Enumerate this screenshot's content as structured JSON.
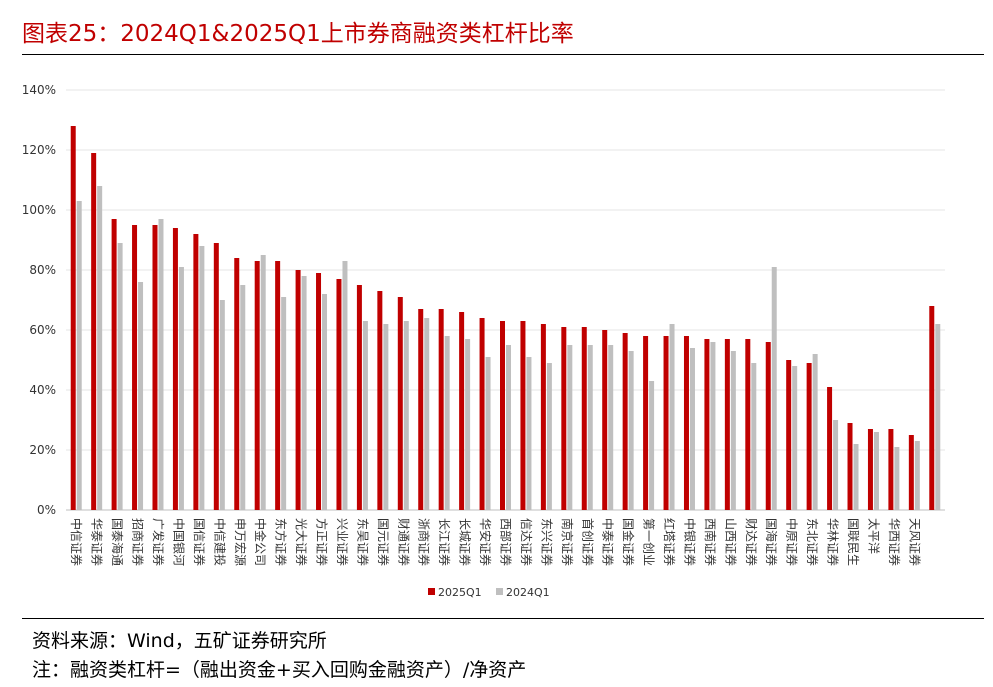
{
  "chart_data": {
    "type": "bar",
    "title": "图表25：2024Q1&2025Q1上市券商融资类杠杆比率",
    "categories": [
      "中信证券",
      "华泰证券",
      "国泰海通",
      "招商证券",
      "广发证券",
      "中国银河",
      "国信证券",
      "中信建投",
      "申万宏源",
      "中金公司",
      "东方证券",
      "光大证券",
      "方正证券",
      "兴业证券",
      "东吴证券",
      "国元证券",
      "财通证券",
      "浙商证券",
      "长江证券",
      "长城证券",
      "华安证券",
      "西部证券",
      "信达证券",
      "东兴证券",
      "南京证券",
      "首创证券",
      "中泰证券",
      "国金证券",
      "第一创业",
      "红塔证券",
      "中银证券",
      "西南证券",
      "山西证券",
      "财达证券",
      "国海证券",
      "中原证券",
      "东北证券",
      "华林证券",
      "国联民生",
      "太平洋",
      "华西证券",
      "天风证券",
      null
    ],
    "series": [
      {
        "name": "2025Q1",
        "color": "#c00000",
        "values": [
          128,
          119,
          97,
          95,
          95,
          94,
          92,
          89,
          84,
          83,
          83,
          80,
          79,
          77,
          75,
          73,
          71,
          67,
          67,
          66,
          64,
          63,
          63,
          62,
          61,
          61,
          60,
          59,
          58,
          58,
          58,
          57,
          57,
          57,
          56,
          50,
          49,
          41,
          29,
          27,
          27,
          25,
          68
        ]
      },
      {
        "name": "2024Q1",
        "color": "#bfbfbf",
        "values": [
          103,
          108,
          89,
          76,
          97,
          81,
          88,
          70,
          75,
          85,
          71,
          78,
          72,
          83,
          63,
          62,
          63,
          64,
          58,
          57,
          51,
          55,
          51,
          49,
          55,
          55,
          55,
          53,
          43,
          62,
          54,
          56,
          53,
          49,
          81,
          48,
          52,
          30,
          22,
          26,
          21,
          23,
          62
        ]
      }
    ],
    "ylim": [
      0,
      140
    ],
    "yticks": [
      {
        "value": 0,
        "label": "0%"
      },
      {
        "value": 20,
        "label": "20%"
      },
      {
        "value": 40,
        "label": "40%"
      },
      {
        "value": 60,
        "label": "60%"
      },
      {
        "value": 80,
        "label": "80%"
      },
      {
        "value": 100,
        "label": "100%"
      },
      {
        "value": 120,
        "label": "120%"
      },
      {
        "value": 140,
        "label": "140%"
      }
    ],
    "grid": true
  },
  "footer": {
    "source": "资料来源：Wind，五矿证券研究所",
    "note": "注：融资类杠杆=（融出资金+买入回购金融资产）/净资产"
  }
}
